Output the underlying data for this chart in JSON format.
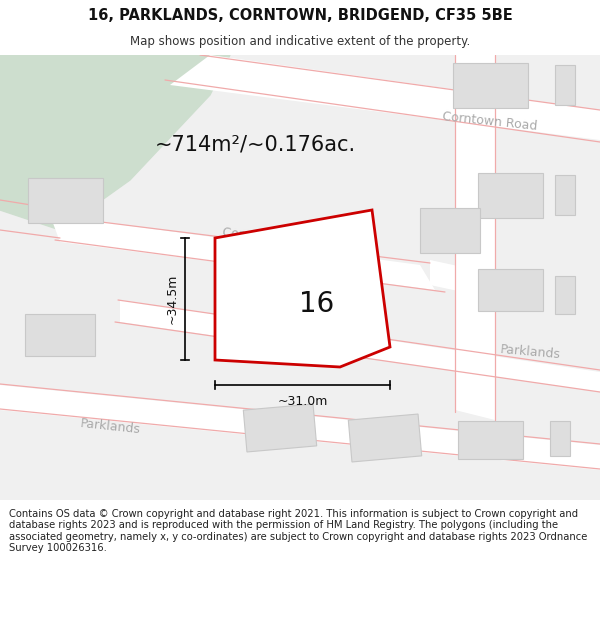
{
  "title": "16, PARKLANDS, CORNTOWN, BRIDGEND, CF35 5BE",
  "subtitle": "Map shows position and indicative extent of the property.",
  "footer": "Contains OS data © Crown copyright and database right 2021. This information is subject to Crown copyright and database rights 2023 and is reproduced with the permission of HM Land Registry. The polygons (including the associated geometry, namely x, y co-ordinates) are subject to Crown copyright and database rights 2023 Ordnance Survey 100026316.",
  "area_label": "~714m²/~0.176ac.",
  "width_label": "~31.0m",
  "height_label": "~34.5m",
  "property_number": "16",
  "bg_map_color": "#f0f0f0",
  "green_area_color": "#cddece",
  "road_color": "#ffffff",
  "building_color": "#dedede",
  "building_border_color": "#c8c8c8",
  "plot_border": "#cc0000",
  "road_line_color": "#f0aaaa",
  "title_fontsize": 10.5,
  "subtitle_fontsize": 8.5,
  "footer_fontsize": 7.2
}
